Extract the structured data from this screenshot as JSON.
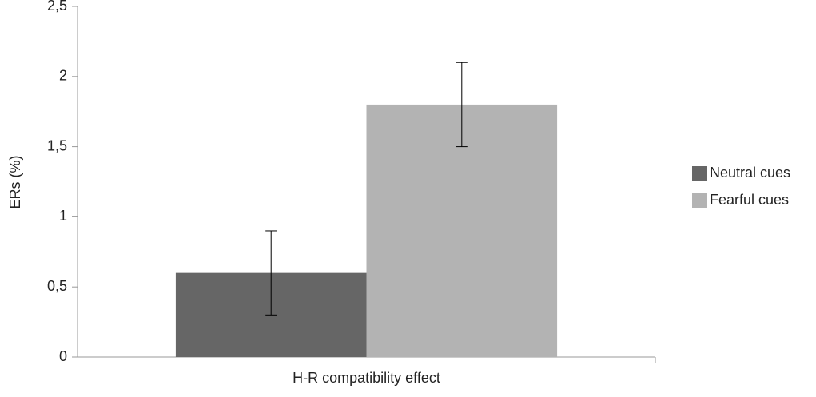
{
  "chart_data": {
    "type": "bar",
    "y_label": "ERs (%)",
    "categories": [
      "H-R compatibility effect"
    ],
    "series": [
      {
        "name": "Neutral cues",
        "color": "#666666",
        "values": [
          0.6
        ],
        "errors": [
          0.3
        ]
      },
      {
        "name": "Fearful cues",
        "color": "#b3b3b3",
        "values": [
          1.8
        ],
        "errors": [
          0.3
        ]
      }
    ],
    "ylim": [
      0,
      2.5
    ],
    "yticks": [
      0,
      {
        "value": 0.5,
        "label": "0,5"
      },
      1,
      {
        "value": 1.5,
        "label": "1,5"
      },
      2,
      {
        "value": 2.5,
        "label": "2,5"
      }
    ],
    "grid": false,
    "legend": "right"
  }
}
